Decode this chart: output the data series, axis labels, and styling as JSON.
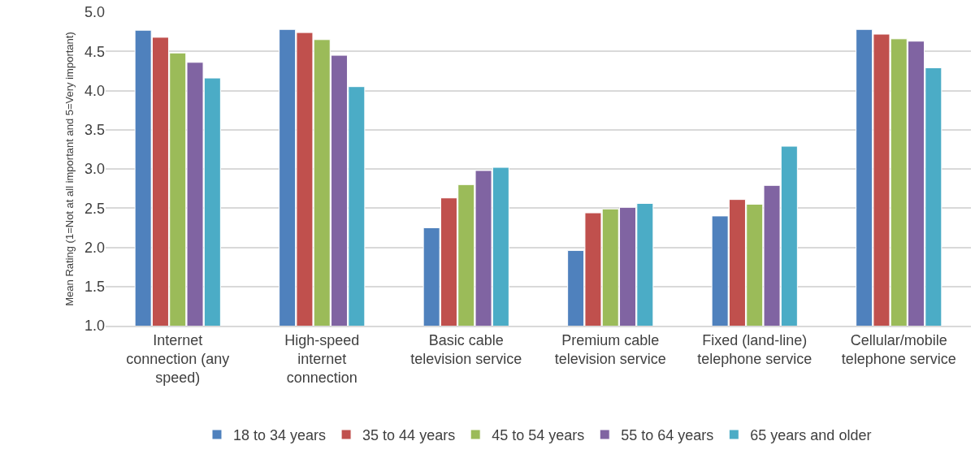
{
  "chart_data": {
    "type": "bar",
    "ylabel": "Mean Rating (1=Not at all important and 5=Very important)",
    "categories": [
      "Internet\nconnection (any\nspeed)",
      "High-speed\ninternet\nconnection",
      "Basic cable\ntelevision service",
      "Premium cable\ntelevision service",
      "Fixed (land-line)\ntelephone service",
      "Cellular/mobile\ntelephone service"
    ],
    "series": [
      {
        "name": "18 to 34 years",
        "color": "#4f81bd",
        "values": [
          4.77,
          4.78,
          2.25,
          1.96,
          2.4,
          4.78
        ]
      },
      {
        "name": "35 to 44 years",
        "color": "#c0504d",
        "values": [
          4.68,
          4.74,
          2.63,
          2.44,
          2.61,
          4.72
        ]
      },
      {
        "name": "45 to 54 years",
        "color": "#9bbb59",
        "values": [
          4.48,
          4.65,
          2.8,
          2.49,
          2.55,
          4.66
        ]
      },
      {
        "name": "55 to 64 years",
        "color": "#8064a2",
        "values": [
          4.36,
          4.45,
          2.98,
          2.51,
          2.79,
          4.63
        ]
      },
      {
        "name": "65 years and older",
        "color": "#4bacc6",
        "values": [
          4.16,
          4.05,
          3.02,
          2.56,
          3.29,
          4.29
        ]
      }
    ],
    "ylim": [
      1.0,
      5.0
    ],
    "yticks": [
      {
        "value": 1,
        "label": "1.0"
      },
      {
        "value": 1.5,
        "label": "1.5"
      },
      {
        "value": 2,
        "label": "2.0"
      },
      {
        "value": 2.5,
        "label": "2.5"
      },
      {
        "value": 3,
        "label": "3.0"
      },
      {
        "value": 3.5,
        "label": "3.5"
      },
      {
        "value": 4,
        "label": "4.0"
      },
      {
        "value": 4.5,
        "label": "4.5"
      },
      {
        "value": 5,
        "label": "5.0"
      }
    ],
    "grid": "y",
    "legend": "bottom"
  }
}
